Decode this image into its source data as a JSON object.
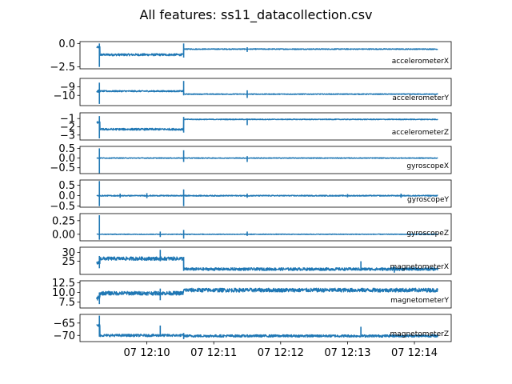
{
  "chart_data": {
    "type": "line",
    "title": "All features: ss11_datacollection.csv",
    "x_tick_labels": [
      "07 12:10",
      "07 12:11",
      "07 12:12",
      "07 12:13",
      "07 12:14"
    ],
    "x_tick_minutes": [
      10,
      11,
      12,
      13,
      14
    ],
    "x_range_minutes": [
      9.0,
      14.55
    ],
    "x_data_range_minutes": [
      9.25,
      14.35
    ],
    "line_color": "#1f77b4",
    "grid": false,
    "panels": [
      {
        "name": "accelerometerX",
        "ylim": [
          -2.7,
          0.2
        ],
        "yticks": [
          0.0,
          -2.5
        ],
        "ytick_labels": [
          "0.0",
          "−2.5"
        ],
        "segments": [
          {
            "from": 9.25,
            "to": 9.3,
            "level": -0.4,
            "noise": 0.1
          },
          {
            "from": 9.3,
            "to": 10.55,
            "level": -1.2,
            "noise": 0.12
          },
          {
            "from": 10.55,
            "to": 14.35,
            "level": -0.6,
            "noise": 0.05
          }
        ],
        "spikes": [
          {
            "t": 9.29,
            "low": -2.5,
            "high": 0.0
          },
          {
            "t": 10.55,
            "low": -1.5,
            "high": 0.0
          },
          {
            "t": 11.5,
            "low": -0.9,
            "high": -0.4
          }
        ]
      },
      {
        "name": "accelerometerY",
        "ylim": [
          -11.2,
          -8.0
        ],
        "yticks": [
          -9,
          -10
        ],
        "ytick_labels": [
          "−9",
          "−10"
        ],
        "segments": [
          {
            "from": 9.25,
            "to": 9.3,
            "level": -9.5,
            "noise": 0.15
          },
          {
            "from": 9.3,
            "to": 10.55,
            "level": -9.5,
            "noise": 0.08
          },
          {
            "from": 10.55,
            "to": 14.35,
            "level": -9.85,
            "noise": 0.05
          }
        ],
        "spikes": [
          {
            "t": 9.29,
            "low": -11.0,
            "high": -8.5
          },
          {
            "t": 10.55,
            "low": -10.0,
            "high": -8.3
          },
          {
            "t": 11.5,
            "low": -10.3,
            "high": -9.4
          }
        ]
      },
      {
        "name": "accelerometerZ",
        "ylim": [
          -3.6,
          -0.3
        ],
        "yticks": [
          -1,
          -2,
          -3
        ],
        "ytick_labels": [
          "−1",
          "−2",
          "−3"
        ],
        "segments": [
          {
            "from": 9.25,
            "to": 9.3,
            "level": -1.5,
            "noise": 0.15
          },
          {
            "from": 9.3,
            "to": 10.55,
            "level": -2.3,
            "noise": 0.12
          },
          {
            "from": 10.55,
            "to": 14.35,
            "level": -1.1,
            "noise": 0.05
          }
        ],
        "spikes": [
          {
            "t": 9.29,
            "low": -3.4,
            "high": -0.7
          },
          {
            "t": 10.55,
            "low": -2.7,
            "high": -0.8
          },
          {
            "t": 11.5,
            "low": -1.8,
            "high": -1.0
          }
        ]
      },
      {
        "name": "gyroscopeX",
        "ylim": [
          -0.8,
          0.6
        ],
        "yticks": [
          0.5,
          0.0,
          -0.5
        ],
        "ytick_labels": [
          "0.5",
          "0.0",
          "−0.5"
        ],
        "segments": [
          {
            "from": 9.25,
            "to": 14.35,
            "level": 0.0,
            "noise": 0.02
          }
        ],
        "spikes": [
          {
            "t": 9.29,
            "low": -0.8,
            "high": 0.5
          },
          {
            "t": 10.55,
            "low": -0.2,
            "high": 0.4
          },
          {
            "t": 11.5,
            "low": -0.2,
            "high": 0.1
          }
        ]
      },
      {
        "name": "gyroscopeY",
        "ylim": [
          -0.55,
          0.75
        ],
        "yticks": [
          0.5,
          0.0,
          -0.5
        ],
        "ytick_labels": [
          "0.5",
          "0.0",
          "−0.5"
        ],
        "segments": [
          {
            "from": 9.25,
            "to": 14.35,
            "level": 0.0,
            "noise": 0.025
          }
        ],
        "spikes": [
          {
            "t": 9.29,
            "low": -0.5,
            "high": 0.7
          },
          {
            "t": 10.55,
            "low": -0.5,
            "high": 0.3
          },
          {
            "t": 9.6,
            "low": -0.1,
            "high": 0.1
          },
          {
            "t": 10.0,
            "low": -0.12,
            "high": 0.12
          },
          {
            "t": 11.5,
            "low": -0.1,
            "high": 0.1
          },
          {
            "t": 13.0,
            "low": -0.08,
            "high": 0.08
          },
          {
            "t": 13.8,
            "low": -0.1,
            "high": 0.1
          }
        ]
      },
      {
        "name": "gyroscopeZ",
        "ylim": [
          -0.12,
          0.38
        ],
        "yticks": [
          0.25,
          0.0
        ],
        "ytick_labels": [
          "0.25",
          "0.00"
        ],
        "segments": [
          {
            "from": 9.25,
            "to": 14.35,
            "level": 0.0,
            "noise": 0.006
          }
        ],
        "spikes": [
          {
            "t": 9.29,
            "low": -0.1,
            "high": 0.35
          },
          {
            "t": 10.55,
            "low": -0.08,
            "high": 0.08
          },
          {
            "t": 10.2,
            "low": -0.05,
            "high": 0.05
          },
          {
            "t": 11.5,
            "low": -0.03,
            "high": 0.05
          }
        ]
      },
      {
        "name": "magnetometerX",
        "ylim": [
          17.5,
          33.0
        ],
        "yticks": [
          30,
          25
        ],
        "ytick_labels": [
          "30",
          "25"
        ],
        "segments": [
          {
            "from": 9.25,
            "to": 9.3,
            "level": 24.0,
            "noise": 1.0
          },
          {
            "from": 9.3,
            "to": 10.55,
            "level": 26.5,
            "noise": 1.0
          },
          {
            "from": 10.55,
            "to": 14.35,
            "level": 20.5,
            "noise": 0.8
          }
        ],
        "spikes": [
          {
            "t": 9.29,
            "low": 21.0,
            "high": 28.0
          },
          {
            "t": 10.2,
            "low": 25.0,
            "high": 31.5
          },
          {
            "t": 10.55,
            "low": 19.5,
            "high": 27.5
          },
          {
            "t": 13.2,
            "low": 19.5,
            "high": 25.0
          },
          {
            "t": 13.7,
            "low": 18.5,
            "high": 22.0
          }
        ]
      },
      {
        "name": "magnetometerY",
        "ylim": [
          6.0,
          13.0
        ],
        "yticks": [
          12.5,
          10.0,
          7.5
        ],
        "ytick_labels": [
          "12.5",
          "10.0",
          "7.5"
        ],
        "segments": [
          {
            "from": 9.25,
            "to": 9.3,
            "level": 8.5,
            "noise": 0.6
          },
          {
            "from": 9.3,
            "to": 10.55,
            "level": 9.8,
            "noise": 0.5
          },
          {
            "from": 10.55,
            "to": 14.35,
            "level": 10.6,
            "noise": 0.5
          }
        ],
        "spikes": [
          {
            "t": 9.29,
            "low": 7.0,
            "high": 10.0
          },
          {
            "t": 10.2,
            "low": 8.0,
            "high": 11.0
          }
        ]
      },
      {
        "name": "magnetometerZ",
        "ylim": [
          -72.5,
          -61.5
        ],
        "yticks": [
          -65,
          -70
        ],
        "ytick_labels": [
          "−65",
          "−70"
        ],
        "segments": [
          {
            "from": 9.25,
            "to": 9.3,
            "level": -66.0,
            "noise": 0.6
          },
          {
            "from": 9.3,
            "to": 10.55,
            "level": -70.0,
            "noise": 0.5
          },
          {
            "from": 10.55,
            "to": 14.35,
            "level": -70.2,
            "noise": 0.5
          }
        ],
        "spikes": [
          {
            "t": 9.29,
            "low": -70.5,
            "high": -62.0
          },
          {
            "t": 10.2,
            "low": -70.0,
            "high": -66.0
          },
          {
            "t": 13.2,
            "low": -70.0,
            "high": -66.5
          },
          {
            "t": 10.55,
            "low": -71.5,
            "high": -69.0
          }
        ]
      }
    ]
  }
}
